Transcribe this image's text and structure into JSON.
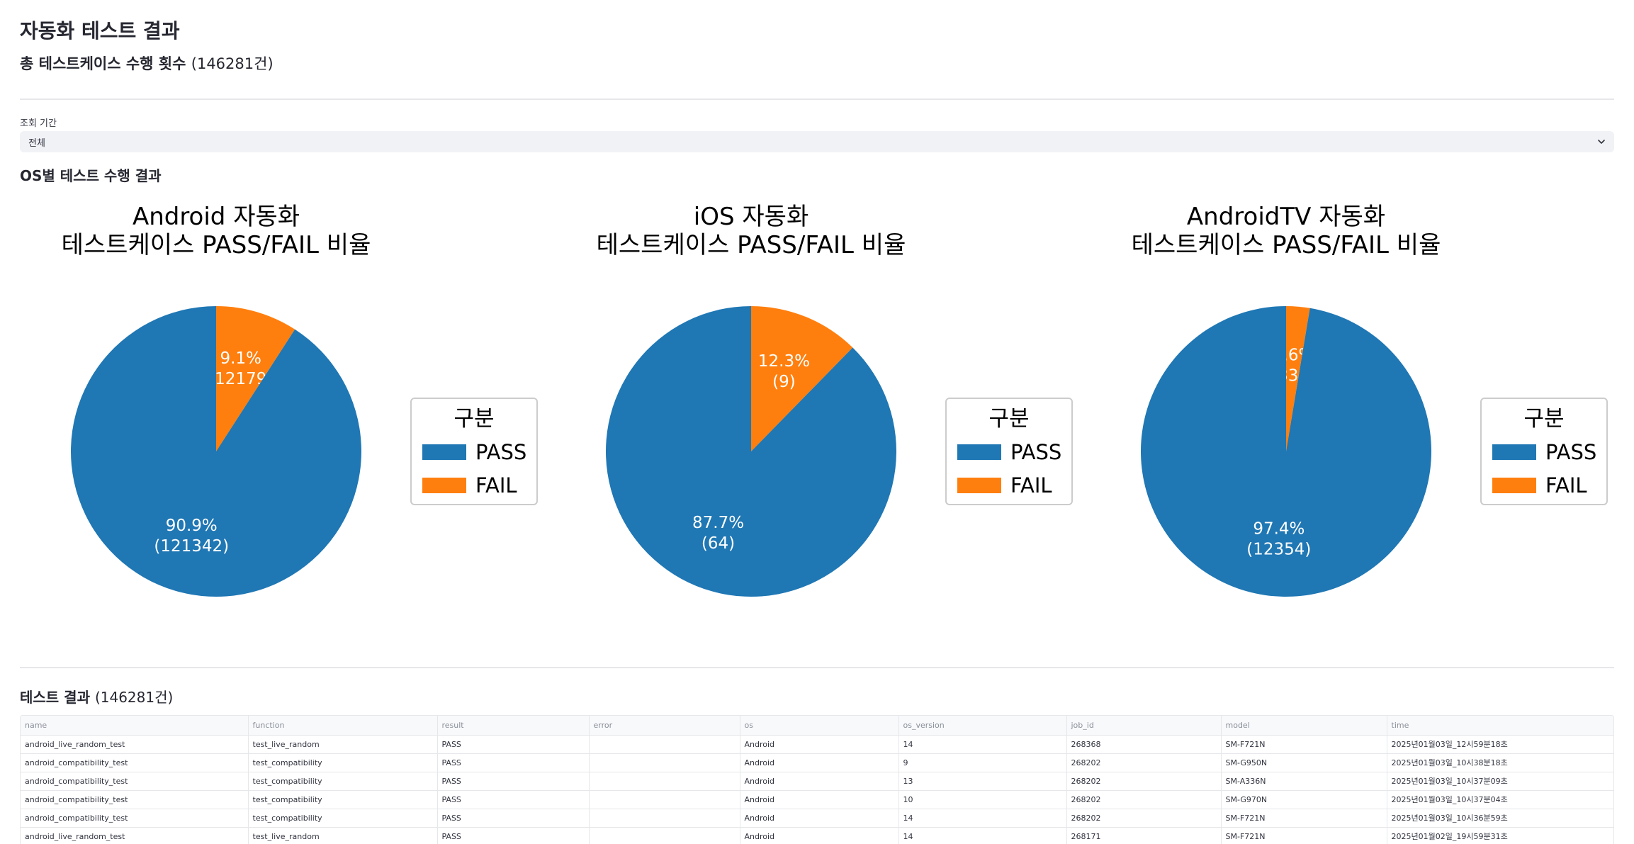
{
  "page": {
    "title": "자동화 테스트 결과",
    "subtitle_label": "총 테스트케이스 수행 횟수",
    "subtitle_count": "(146281건)"
  },
  "filter": {
    "label": "조회 기간",
    "value": "전체",
    "icon": "chevron-down-icon"
  },
  "os_section": {
    "title": "OS별 테스트 수행 결과"
  },
  "colors": {
    "pass": "#1f77b4",
    "fail": "#ff7f0e"
  },
  "chart_data": [
    {
      "type": "pie",
      "title": [
        "Android 자동화",
        "테스트케이스 PASS/FAIL 비율"
      ],
      "legend_title": "구분",
      "legend_placement": "right",
      "categories": [
        "PASS",
        "FAIL"
      ],
      "values": [
        121342,
        12179
      ],
      "labels": [
        [
          "90.9%",
          "(121342)"
        ],
        [
          "9.1%",
          "(12179)"
        ]
      ]
    },
    {
      "type": "pie",
      "title": [
        "iOS 자동화",
        "테스트케이스 PASS/FAIL 비율"
      ],
      "legend_title": "구분",
      "legend_placement": "right",
      "categories": [
        "PASS",
        "FAIL"
      ],
      "values": [
        64,
        9
      ],
      "labels": [
        [
          "87.7%",
          "(64)"
        ],
        [
          "12.3%",
          "(9)"
        ]
      ]
    },
    {
      "type": "pie",
      "title": [
        "AndroidTV 자동화",
        "테스트케이스 PASS/FAIL 비율"
      ],
      "legend_title": "구분",
      "legend_placement": "right",
      "categories": [
        "PASS",
        "FAIL"
      ],
      "values": [
        12354,
        333
      ],
      "labels": [
        [
          "97.4%",
          "(12354)"
        ],
        [
          "2.6%",
          "(333)"
        ]
      ]
    }
  ],
  "results": {
    "title_label": "테스트 결과",
    "title_count": "(146281건)",
    "columns": [
      "name",
      "function",
      "result",
      "error",
      "os",
      "os_version",
      "job_id",
      "model",
      "time"
    ],
    "rows": [
      [
        "android_live_random_test",
        "test_live_random",
        "PASS",
        "",
        "Android",
        "14",
        "268368",
        "SM-F721N",
        "2025년01월03일_12시59분18초"
      ],
      [
        "android_compatibility_test",
        "test_compatibility",
        "PASS",
        "",
        "Android",
        "9",
        "268202",
        "SM-G950N",
        "2025년01월03일_10시38분18초"
      ],
      [
        "android_compatibility_test",
        "test_compatibility",
        "PASS",
        "",
        "Android",
        "13",
        "268202",
        "SM-A336N",
        "2025년01월03일_10시37분09초"
      ],
      [
        "android_compatibility_test",
        "test_compatibility",
        "PASS",
        "",
        "Android",
        "10",
        "268202",
        "SM-G970N",
        "2025년01월03일_10시37분04초"
      ],
      [
        "android_compatibility_test",
        "test_compatibility",
        "PASS",
        "",
        "Android",
        "14",
        "268202",
        "SM-F721N",
        "2025년01월03일_10시36분59초"
      ],
      [
        "android_live_random_test",
        "test_live_random",
        "PASS",
        "",
        "Android",
        "14",
        "268171",
        "SM-F721N",
        "2025년01월02일_19시59분31초"
      ]
    ]
  }
}
